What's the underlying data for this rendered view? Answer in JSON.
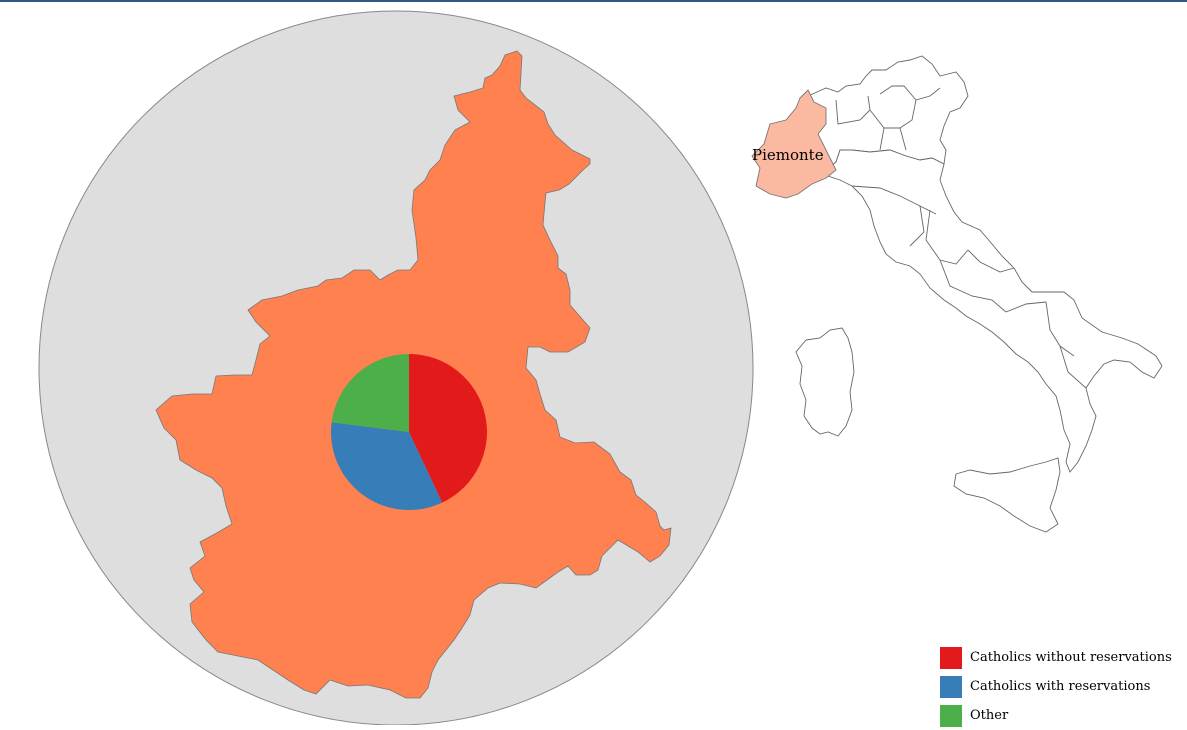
{
  "map": {
    "selected_region": "Piemonte",
    "region_fill_large": "#ff8150",
    "region_fill_small": "#fbb9a1",
    "circle_fill": "#dedede"
  },
  "chart_data": {
    "type": "pie",
    "categories": [
      "Catholics without reservations",
      "Catholics with reservations",
      "Other"
    ],
    "values": [
      43,
      34,
      23
    ],
    "colors": [
      "#e31a1c",
      "#377eb8",
      "#4daf4a"
    ]
  },
  "legend": {
    "items": [
      {
        "label": "Catholics without reservations",
        "color": "#e31a1c"
      },
      {
        "label": "Catholics with reservations",
        "color": "#377eb8"
      },
      {
        "label": "Other",
        "color": "#4daf4a"
      }
    ]
  }
}
